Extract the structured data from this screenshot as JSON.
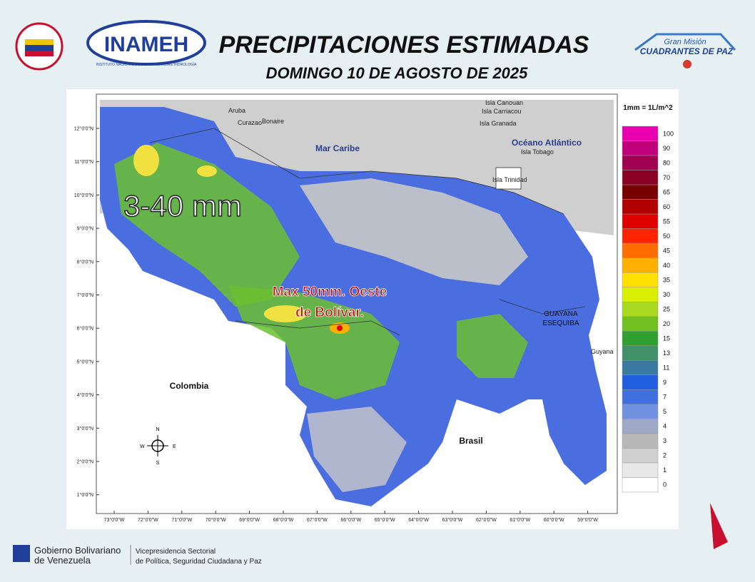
{
  "header": {
    "title": "PRECIPITACIONES ESTIMADAS",
    "subtitle": "DOMINGO 10 DE AGOSTO DE 2025",
    "logo_left": "INAMEH",
    "logo_left_caption": "INSTITUTO NACIONAL DE METEOROLOGÍA E HIDROLOGÍA",
    "logo_right_top": "Gran Misión",
    "logo_right_main": "CUADRANTES DE PAZ"
  },
  "map": {
    "labels": {
      "aruba": "Aruba",
      "curazao": "Curazao",
      "bonaire": "Bonaire",
      "mar_caribe": "Mar Caribe",
      "oceano": "Océano Atlántico",
      "canouan": "Isla Canouan",
      "carriacou": "Isla Carriacou",
      "granada": "Isla Granada",
      "tobago": "Isla Tobago",
      "trinidad": "Isla Trinidad",
      "guayana_1": "GUAYANA",
      "guayana_2": "ESEQUIBA",
      "guyana": "Guyana",
      "colombia": "Colombia",
      "brasil": "Brasil"
    },
    "annotations": {
      "range": "3-40 mm",
      "max_1": "Max 50mm. Oeste",
      "max_2": "de Bolívar."
    },
    "compass": {
      "n": "N",
      "s": "S",
      "e": "E",
      "w": "W"
    },
    "lat_labels": [
      "12°0'0\"N",
      "11°0'0\"N",
      "10°0'0\"N",
      "9°0'0\"N",
      "8°0'0\"N",
      "7°0'0\"N",
      "6°0'0\"N",
      "5°0'0\"N",
      "4°0'0\"N",
      "3°0'0\"N",
      "2°0'0\"N",
      "1°0'0\"N"
    ],
    "lon_labels": [
      "73°0'0\"W",
      "72°0'0\"W",
      "71°0'0\"W",
      "70°0'0\"W",
      "69°0'0\"W",
      "68°0'0\"W",
      "67°0'0\"W",
      "66°0'0\"W",
      "65°0'0\"W",
      "64°0'0\"W",
      "63°0'0\"W",
      "62°0'0\"W",
      "61°0'0\"W",
      "60°0'0\"W",
      "59°0'0\"W"
    ]
  },
  "legend": {
    "unit": "1mm = 1L/m^2",
    "items": [
      {
        "label": "100",
        "color": "#e800b0"
      },
      {
        "label": "90",
        "color": "#c0007a"
      },
      {
        "label": "80",
        "color": "#a00050"
      },
      {
        "label": "70",
        "color": "#8a0024"
      },
      {
        "label": "65",
        "color": "#780000"
      },
      {
        "label": "60",
        "color": "#b00000"
      },
      {
        "label": "55",
        "color": "#e00000"
      },
      {
        "label": "50",
        "color": "#ff2400"
      },
      {
        "label": "45",
        "color": "#ff6c00"
      },
      {
        "label": "40",
        "color": "#ffb000"
      },
      {
        "label": "35",
        "color": "#ffe000"
      },
      {
        "label": "30",
        "color": "#d8f000"
      },
      {
        "label": "25",
        "color": "#a8d820"
      },
      {
        "label": "20",
        "color": "#70c020"
      },
      {
        "label": "15",
        "color": "#30a030"
      },
      {
        "label": "13",
        "color": "#40906a"
      },
      {
        "label": "11",
        "color": "#3a7aa0"
      },
      {
        "label": "9",
        "color": "#2060e0"
      },
      {
        "label": "7",
        "color": "#4070e0"
      },
      {
        "label": "5",
        "color": "#7090e0"
      },
      {
        "label": "4",
        "color": "#a0a8c8"
      },
      {
        "label": "3",
        "color": "#b8b8b8"
      },
      {
        "label": "2",
        "color": "#d0d0d0"
      },
      {
        "label": "1",
        "color": "#e8e8e8"
      },
      {
        "label": "0",
        "color": "#ffffff"
      }
    ]
  },
  "footer": {
    "gov_1": "Gobierno Bolivariano",
    "gov_2": "de Venezuela",
    "vp_1": "Vicepresidencia Sectorial",
    "vp_2": "de Política, Seguridad Ciudadana y Paz"
  }
}
